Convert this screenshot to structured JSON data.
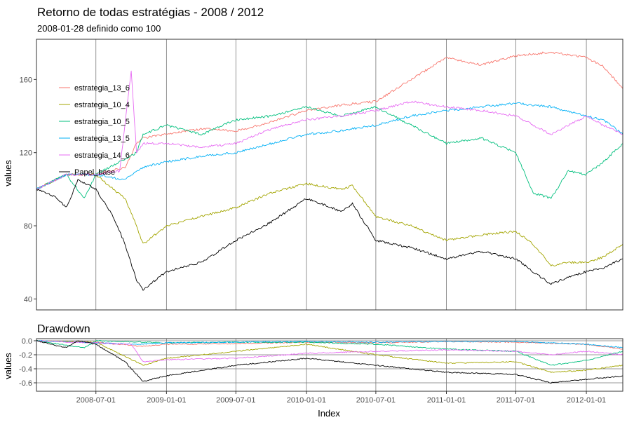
{
  "chart_data": [
    {
      "type": "line",
      "title": "Retorno de todas estratégias - 2008 / 2012",
      "subtitle": "2008-01-28 definido como 100",
      "xlabel": "",
      "ylabel": "values",
      "xlim": [
        "2008-01-28",
        "2012-04-05"
      ],
      "ylim": [
        34,
        182
      ],
      "y_ticks": [
        40,
        80,
        120,
        160
      ],
      "x_ticks": [
        "2008-07-01",
        "2009-01-01",
        "2009-07-01",
        "2010-01-01",
        "2010-07-01",
        "2011-01-01",
        "2011-07-01",
        "2012-01-01"
      ],
      "legend_position": "top-left",
      "grid": "vertical",
      "series": [
        {
          "name": "estrategia_13_6",
          "color": "#F8766D",
          "points": [
            [
              "2008-01-28",
              100
            ],
            [
              "2008-04-15",
              108
            ],
            [
              "2008-07-01",
              108
            ],
            [
              "2008-09-15",
              112
            ],
            [
              "2008-10-15",
              125
            ],
            [
              "2008-11-01",
              128
            ],
            [
              "2009-01-01",
              130
            ],
            [
              "2009-04-01",
              133
            ],
            [
              "2009-07-01",
              132
            ],
            [
              "2009-09-01",
              135
            ],
            [
              "2010-01-01",
              143
            ],
            [
              "2010-04-01",
              146
            ],
            [
              "2010-07-01",
              148
            ],
            [
              "2010-10-01",
              160
            ],
            [
              "2011-01-01",
              172
            ],
            [
              "2011-04-01",
              168
            ],
            [
              "2011-07-01",
              173
            ],
            [
              "2011-10-01",
              175
            ],
            [
              "2012-01-01",
              172
            ],
            [
              "2012-02-15",
              167
            ],
            [
              "2012-04-05",
              155
            ]
          ]
        },
        {
          "name": "estrategia_10_4",
          "color": "#A3A500",
          "points": [
            [
              "2008-01-28",
              100
            ],
            [
              "2008-04-15",
              108
            ],
            [
              "2008-07-01",
              108
            ],
            [
              "2008-08-15",
              100
            ],
            [
              "2008-09-15",
              95
            ],
            [
              "2008-10-15",
              80
            ],
            [
              "2008-11-01",
              70
            ],
            [
              "2009-01-01",
              80
            ],
            [
              "2009-04-01",
              85
            ],
            [
              "2009-07-01",
              90
            ],
            [
              "2009-10-01",
              98
            ],
            [
              "2010-01-01",
              103
            ],
            [
              "2010-04-01",
              100
            ],
            [
              "2010-05-01",
              102
            ],
            [
              "2010-07-01",
              85
            ],
            [
              "2010-10-01",
              80
            ],
            [
              "2011-01-01",
              72
            ],
            [
              "2011-04-01",
              75
            ],
            [
              "2011-07-01",
              77
            ],
            [
              "2011-08-15",
              70
            ],
            [
              "2011-10-01",
              58
            ],
            [
              "2011-11-15",
              60
            ],
            [
              "2012-01-01",
              60
            ],
            [
              "2012-02-15",
              63
            ],
            [
              "2012-04-05",
              70
            ]
          ]
        },
        {
          "name": "estrategia_10_5",
          "color": "#00BF7D",
          "points": [
            [
              "2008-01-28",
              100
            ],
            [
              "2008-04-15",
              108
            ],
            [
              "2008-06-01",
              95
            ],
            [
              "2008-07-01",
              108
            ],
            [
              "2008-09-01",
              115
            ],
            [
              "2008-10-15",
              120
            ],
            [
              "2008-11-01",
              130
            ],
            [
              "2009-01-01",
              135
            ],
            [
              "2009-04-01",
              130
            ],
            [
              "2009-07-01",
              138
            ],
            [
              "2009-10-01",
              140
            ],
            [
              "2010-01-01",
              145
            ],
            [
              "2010-04-01",
              140
            ],
            [
              "2010-07-01",
              145
            ],
            [
              "2010-10-01",
              135
            ],
            [
              "2011-01-01",
              125
            ],
            [
              "2011-04-01",
              128
            ],
            [
              "2011-07-01",
              120
            ],
            [
              "2011-08-15",
              98
            ],
            [
              "2011-10-01",
              95
            ],
            [
              "2011-11-15",
              110
            ],
            [
              "2012-01-01",
              108
            ],
            [
              "2012-02-15",
              115
            ],
            [
              "2012-04-05",
              125
            ]
          ]
        },
        {
          "name": "estrategia_13_5",
          "color": "#00B0F6",
          "points": [
            [
              "2008-01-28",
              100
            ],
            [
              "2008-04-15",
              108
            ],
            [
              "2008-07-01",
              108
            ],
            [
              "2008-09-15",
              105
            ],
            [
              "2008-10-15",
              110
            ],
            [
              "2008-11-01",
              112
            ],
            [
              "2009-01-01",
              115
            ],
            [
              "2009-04-01",
              118
            ],
            [
              "2009-07-01",
              120
            ],
            [
              "2009-10-01",
              125
            ],
            [
              "2010-01-01",
              130
            ],
            [
              "2010-04-01",
              132
            ],
            [
              "2010-07-01",
              135
            ],
            [
              "2010-10-01",
              140
            ],
            [
              "2011-01-01",
              143
            ],
            [
              "2011-04-01",
              145
            ],
            [
              "2011-07-01",
              147
            ],
            [
              "2011-10-01",
              145
            ],
            [
              "2012-01-01",
              140
            ],
            [
              "2012-02-15",
              138
            ],
            [
              "2012-04-05",
              130
            ]
          ]
        },
        {
          "name": "estrategia_14_6",
          "color": "#E76BF3",
          "points": [
            [
              "2008-01-28",
              100
            ],
            [
              "2008-04-15",
              108
            ],
            [
              "2008-07-01",
              108
            ],
            [
              "2008-09-01",
              110
            ],
            [
              "2008-10-01",
              165
            ],
            [
              "2008-10-15",
              120
            ],
            [
              "2008-11-01",
              125
            ],
            [
              "2009-01-01",
              125
            ],
            [
              "2009-04-01",
              123
            ],
            [
              "2009-07-01",
              125
            ],
            [
              "2009-10-01",
              133
            ],
            [
              "2010-01-01",
              138
            ],
            [
              "2010-04-01",
              140
            ],
            [
              "2010-07-01",
              143
            ],
            [
              "2010-10-01",
              148
            ],
            [
              "2011-01-01",
              145
            ],
            [
              "2011-04-01",
              143
            ],
            [
              "2011-07-01",
              140
            ],
            [
              "2011-10-01",
              130
            ],
            [
              "2012-01-01",
              140
            ],
            [
              "2012-02-15",
              135
            ],
            [
              "2012-04-05",
              130
            ]
          ]
        },
        {
          "name": "Papel_base",
          "color": "#000000",
          "points": [
            [
              "2008-01-28",
              100
            ],
            [
              "2008-03-15",
              96
            ],
            [
              "2008-04-15",
              90
            ],
            [
              "2008-05-15",
              105
            ],
            [
              "2008-07-01",
              100
            ],
            [
              "2008-08-15",
              85
            ],
            [
              "2008-09-15",
              70
            ],
            [
              "2008-10-15",
              50
            ],
            [
              "2008-11-01",
              45
            ],
            [
              "2009-01-01",
              55
            ],
            [
              "2009-04-01",
              60
            ],
            [
              "2009-07-01",
              72
            ],
            [
              "2009-10-01",
              82
            ],
            [
              "2010-01-01",
              95
            ],
            [
              "2010-04-01",
              88
            ],
            [
              "2010-05-01",
              92
            ],
            [
              "2010-07-01",
              72
            ],
            [
              "2010-10-01",
              68
            ],
            [
              "2011-01-01",
              62
            ],
            [
              "2011-04-01",
              66
            ],
            [
              "2011-07-01",
              62
            ],
            [
              "2011-08-15",
              55
            ],
            [
              "2011-10-01",
              48
            ],
            [
              "2011-11-15",
              52
            ],
            [
              "2012-01-01",
              55
            ],
            [
              "2012-02-15",
              57
            ],
            [
              "2012-04-05",
              62
            ]
          ]
        }
      ]
    },
    {
      "type": "line",
      "title": "Drawdown",
      "xlabel": "Index",
      "ylabel": "values",
      "xlim": [
        "2008-01-28",
        "2012-04-05"
      ],
      "ylim": [
        -0.72,
        0.03
      ],
      "y_ticks": [
        "0.0",
        "-0.2",
        "-0.4",
        "-0.6"
      ],
      "y_tick_values": [
        0,
        -0.2,
        -0.4,
        -0.6
      ],
      "x_ticks": [
        "2008-07-01",
        "2009-01-01",
        "2009-07-01",
        "2010-01-01",
        "2010-07-01",
        "2011-01-01",
        "2011-07-01",
        "2012-01-01"
      ],
      "grid": "both",
      "series": [
        {
          "color": "#F8766D",
          "points": [
            [
              "2008-01-28",
              0
            ],
            [
              "2008-07-01",
              -0.02
            ],
            [
              "2008-11-01",
              -0.08
            ],
            [
              "2009-01-01",
              -0.05
            ],
            [
              "2009-07-01",
              -0.04
            ],
            [
              "2010-01-01",
              -0.02
            ],
            [
              "2010-07-01",
              -0.03
            ],
            [
              "2011-01-01",
              -0.01
            ],
            [
              "2011-07-01",
              -0.02
            ],
            [
              "2012-01-01",
              -0.05
            ],
            [
              "2012-04-05",
              -0.12
            ]
          ]
        },
        {
          "color": "#A3A500",
          "points": [
            [
              "2008-01-28",
              0
            ],
            [
              "2008-07-01",
              -0.02
            ],
            [
              "2008-11-01",
              -0.35
            ],
            [
              "2009-01-01",
              -0.25
            ],
            [
              "2009-07-01",
              -0.15
            ],
            [
              "2010-01-01",
              -0.05
            ],
            [
              "2010-07-01",
              -0.2
            ],
            [
              "2011-01-01",
              -0.32
            ],
            [
              "2011-07-01",
              -0.3
            ],
            [
              "2011-10-01",
              -0.45
            ],
            [
              "2012-01-01",
              -0.42
            ],
            [
              "2012-04-05",
              -0.35
            ]
          ]
        },
        {
          "color": "#00BF7D",
          "points": [
            [
              "2008-01-28",
              0
            ],
            [
              "2008-06-01",
              -0.1
            ],
            [
              "2008-07-01",
              0
            ],
            [
              "2009-01-01",
              -0.03
            ],
            [
              "2009-07-01",
              -0.02
            ],
            [
              "2010-01-01",
              -0.02
            ],
            [
              "2010-07-01",
              -0.05
            ],
            [
              "2011-01-01",
              -0.12
            ],
            [
              "2011-07-01",
              -0.15
            ],
            [
              "2011-10-01",
              -0.35
            ],
            [
              "2012-01-01",
              -0.28
            ],
            [
              "2012-04-05",
              -0.15
            ]
          ]
        },
        {
          "color": "#00B0F6",
          "points": [
            [
              "2008-01-28",
              0
            ],
            [
              "2008-10-15",
              -0.05
            ],
            [
              "2009-01-01",
              -0.03
            ],
            [
              "2009-07-01",
              -0.02
            ],
            [
              "2010-01-01",
              -0.01
            ],
            [
              "2010-07-01",
              -0.02
            ],
            [
              "2011-01-01",
              -0.01
            ],
            [
              "2011-07-01",
              -0.01
            ],
            [
              "2012-01-01",
              -0.05
            ],
            [
              "2012-04-05",
              -0.1
            ]
          ]
        },
        {
          "color": "#E76BF3",
          "points": [
            [
              "2008-01-28",
              0
            ],
            [
              "2008-10-01",
              -0.05
            ],
            [
              "2008-11-01",
              -0.3
            ],
            [
              "2009-01-01",
              -0.27
            ],
            [
              "2009-07-01",
              -0.25
            ],
            [
              "2010-01-01",
              -0.18
            ],
            [
              "2010-07-01",
              -0.15
            ],
            [
              "2011-01-01",
              -0.13
            ],
            [
              "2011-07-01",
              -0.15
            ],
            [
              "2011-10-01",
              -0.2
            ],
            [
              "2012-01-01",
              -0.15
            ],
            [
              "2012-04-05",
              -0.2
            ]
          ]
        },
        {
          "color": "#000000",
          "points": [
            [
              "2008-01-28",
              0
            ],
            [
              "2008-04-15",
              -0.1
            ],
            [
              "2008-05-15",
              0
            ],
            [
              "2008-07-01",
              -0.05
            ],
            [
              "2008-09-15",
              -0.3
            ],
            [
              "2008-11-01",
              -0.58
            ],
            [
              "2009-01-01",
              -0.5
            ],
            [
              "2009-07-01",
              -0.35
            ],
            [
              "2010-01-01",
              -0.25
            ],
            [
              "2010-07-01",
              -0.35
            ],
            [
              "2011-01-01",
              -0.45
            ],
            [
              "2011-07-01",
              -0.48
            ],
            [
              "2011-10-01",
              -0.6
            ],
            [
              "2012-01-01",
              -0.55
            ],
            [
              "2012-04-05",
              -0.5
            ]
          ]
        }
      ]
    }
  ]
}
